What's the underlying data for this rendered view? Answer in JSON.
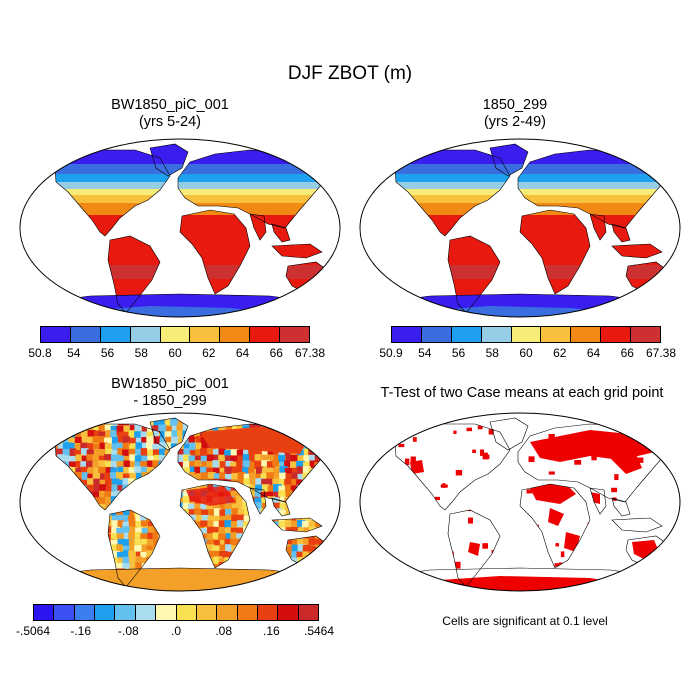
{
  "title": "DJF ZBOT (m)",
  "panels": {
    "tl": {
      "title": "BW1850_piC_001",
      "subtitle": "(yrs 5-24)"
    },
    "tr": {
      "title": "1850_299",
      "subtitle": "(yrs 2-49)"
    },
    "bl": {
      "title": "BW1850_piC_001",
      "subtitle": "- 1850_299"
    },
    "br": {
      "title": "T-Test of two Case means at each grid point"
    }
  },
  "colorbars": {
    "tl": {
      "labels": [
        "50.8",
        "54",
        "56",
        "58",
        "60",
        "62",
        "64",
        "66",
        "67.38"
      ],
      "colors": [
        "#3a1ef0",
        "#3a6ee0",
        "#1ea0ee",
        "#96cde6",
        "#f8ec78",
        "#f8c03c",
        "#f08a14",
        "#e81a10",
        "#cc3030"
      ]
    },
    "tr": {
      "labels": [
        "50.9",
        "54",
        "56",
        "58",
        "60",
        "62",
        "64",
        "66",
        "67.38"
      ],
      "colors": [
        "#3a1ef0",
        "#3a6ee0",
        "#1ea0ee",
        "#96cde6",
        "#f8ec78",
        "#f8c03c",
        "#f08a14",
        "#e81a10",
        "#cc3030"
      ]
    },
    "bl": {
      "labels": [
        "-.5064",
        "-.16",
        "-.08",
        ".0",
        ".08",
        ".16",
        ".5464"
      ],
      "colors": [
        "#2a14f0",
        "#3a50f0",
        "#3a7ef0",
        "#1ea0ee",
        "#64c0ee",
        "#aadcf0",
        "#fff8b0",
        "#f8e050",
        "#f8c03c",
        "#f4a028",
        "#f07a14",
        "#e84010",
        "#d40e0e",
        "#cc2a2a"
      ]
    }
  },
  "note": "Cells are significant at 0.1 level",
  "colors": {
    "ocean": "#ffffff",
    "ttest": "#ee0000"
  }
}
